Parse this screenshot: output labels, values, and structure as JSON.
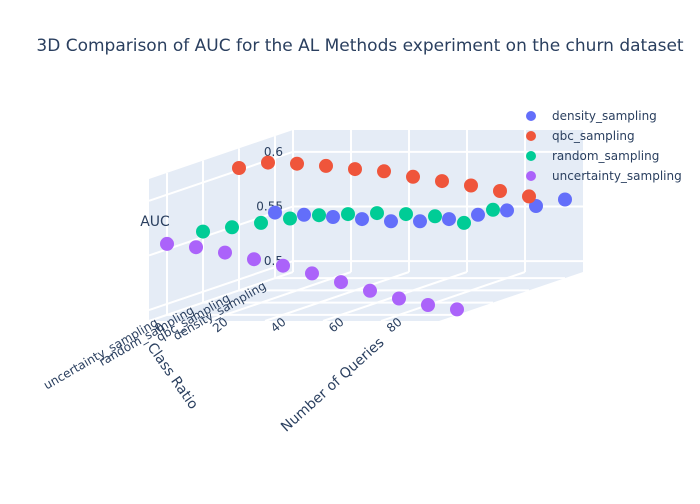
{
  "chart_data": {
    "type": "scatter3d",
    "title": "3D Comparison of AUC for the AL Methods experiment on the churn dataset",
    "axes": {
      "z": {
        "label": "AUC",
        "ticks": [
          "0.5",
          "0.55",
          "0.6"
        ],
        "range": [
          0.49,
          0.62
        ]
      },
      "y": {
        "label": "Class Ratio",
        "ticks": [
          "density_sampling",
          "qbc_sampling",
          "random_sampling",
          "uncertainty_sampling"
        ]
      },
      "x": {
        "label": "Number of Queries",
        "ticks": [
          "0",
          "20",
          "40",
          "60",
          "80"
        ],
        "range": [
          0,
          100
        ]
      }
    },
    "legend": {
      "placement": "top-right",
      "items": [
        {
          "name": "density_sampling",
          "color": "#636efa"
        },
        {
          "name": "qbc_sampling",
          "color": "#ef553b"
        },
        {
          "name": "random_sampling",
          "color": "#00cc96"
        },
        {
          "name": "uncertainty_sampling",
          "color": "#ab63fa"
        }
      ]
    },
    "series": [
      {
        "name": "density_sampling",
        "color": "#636efa",
        "category": "density_sampling",
        "x": [
          0,
          10,
          20,
          30,
          40,
          50,
          60,
          70,
          80,
          90,
          100
        ],
        "auc": [
          0.55,
          0.548,
          0.546,
          0.544,
          0.542,
          0.542,
          0.544,
          0.548,
          0.552,
          0.556,
          0.562
        ]
      },
      {
        "name": "qbc_sampling",
        "color": "#ef553b",
        "category": "qbc_sampling",
        "x": [
          0,
          10,
          20,
          30,
          40,
          50,
          60,
          70,
          80,
          90,
          100
        ],
        "auc": [
          0.602,
          0.607,
          0.606,
          0.604,
          0.601,
          0.599,
          0.594,
          0.59,
          0.586,
          0.581,
          0.576
        ]
      },
      {
        "name": "random_sampling",
        "color": "#00cc96",
        "category": "random_sampling",
        "x": [
          0,
          10,
          20,
          30,
          40,
          50,
          60,
          70,
          80,
          90,
          100
        ],
        "auc": [
          0.555,
          0.559,
          0.563,
          0.567,
          0.57,
          0.571,
          0.572,
          0.571,
          0.569,
          0.563,
          0.575
        ]
      },
      {
        "name": "uncertainty_sampling",
        "color": "#ab63fa",
        "category": "uncertainty_sampling",
        "x": [
          0,
          10,
          20,
          30,
          40,
          50,
          60,
          70,
          80,
          90,
          100
        ],
        "auc": [
          0.555,
          0.552,
          0.547,
          0.541,
          0.535,
          0.528,
          0.52,
          0.512,
          0.505,
          0.499,
          0.495
        ]
      }
    ]
  }
}
